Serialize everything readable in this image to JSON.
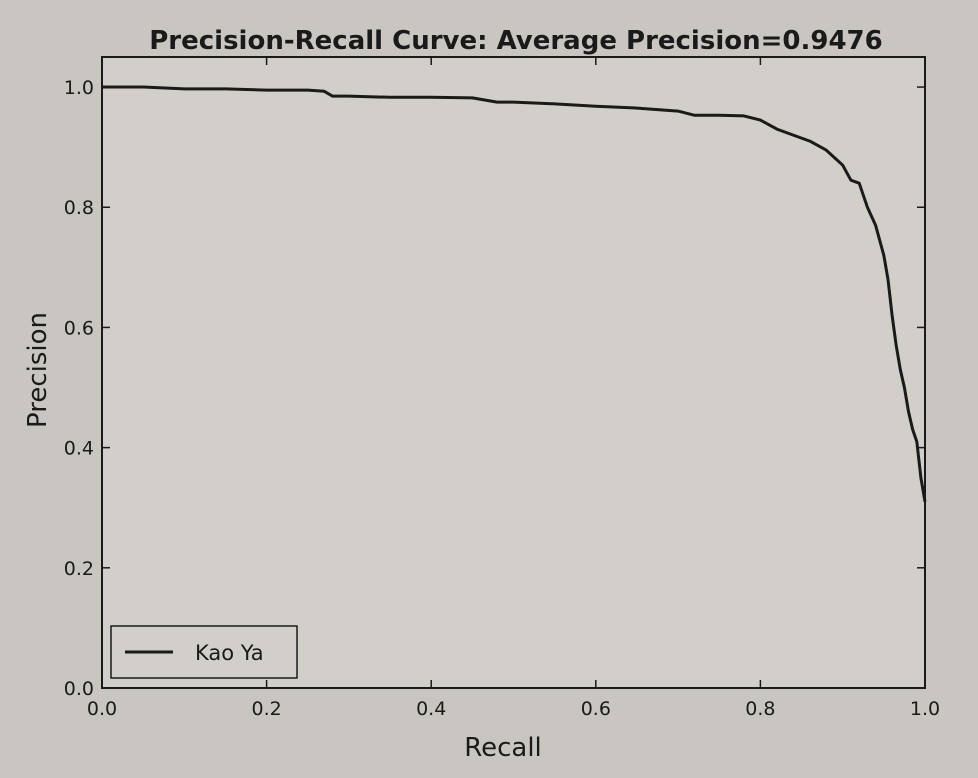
{
  "chart_data": {
    "type": "line",
    "title": "Precision-Recall Curve: Average Precision=0.9476",
    "xlabel": "Recall",
    "ylabel": "Precision",
    "xlim": [
      0.0,
      1.0
    ],
    "ylim": [
      0.0,
      1.05
    ],
    "xticks": [
      "0.0",
      "0.2",
      "0.4",
      "0.6",
      "0.8",
      "1.0"
    ],
    "yticks": [
      "0.0",
      "0.2",
      "0.4",
      "0.6",
      "0.8",
      "1.0"
    ],
    "grid": false,
    "legend_position": "lower-left",
    "series": [
      {
        "name": "Kao Ya",
        "color": "#1a1a1a",
        "x": [
          0.0,
          0.05,
          0.1,
          0.15,
          0.2,
          0.25,
          0.27,
          0.28,
          0.3,
          0.35,
          0.4,
          0.45,
          0.48,
          0.5,
          0.55,
          0.6,
          0.65,
          0.7,
          0.72,
          0.75,
          0.78,
          0.8,
          0.82,
          0.84,
          0.86,
          0.88,
          0.9,
          0.91,
          0.92,
          0.93,
          0.94,
          0.95,
          0.955,
          0.96,
          0.965,
          0.97,
          0.975,
          0.98,
          0.985,
          0.99,
          0.995,
          1.0
        ],
        "y": [
          1.0,
          1.0,
          0.997,
          0.997,
          0.995,
          0.995,
          0.993,
          0.985,
          0.985,
          0.983,
          0.983,
          0.982,
          0.975,
          0.975,
          0.972,
          0.968,
          0.965,
          0.96,
          0.953,
          0.953,
          0.952,
          0.945,
          0.93,
          0.92,
          0.91,
          0.895,
          0.87,
          0.845,
          0.84,
          0.8,
          0.77,
          0.72,
          0.68,
          0.62,
          0.57,
          0.53,
          0.5,
          0.46,
          0.43,
          0.41,
          0.35,
          0.31
        ]
      }
    ]
  }
}
